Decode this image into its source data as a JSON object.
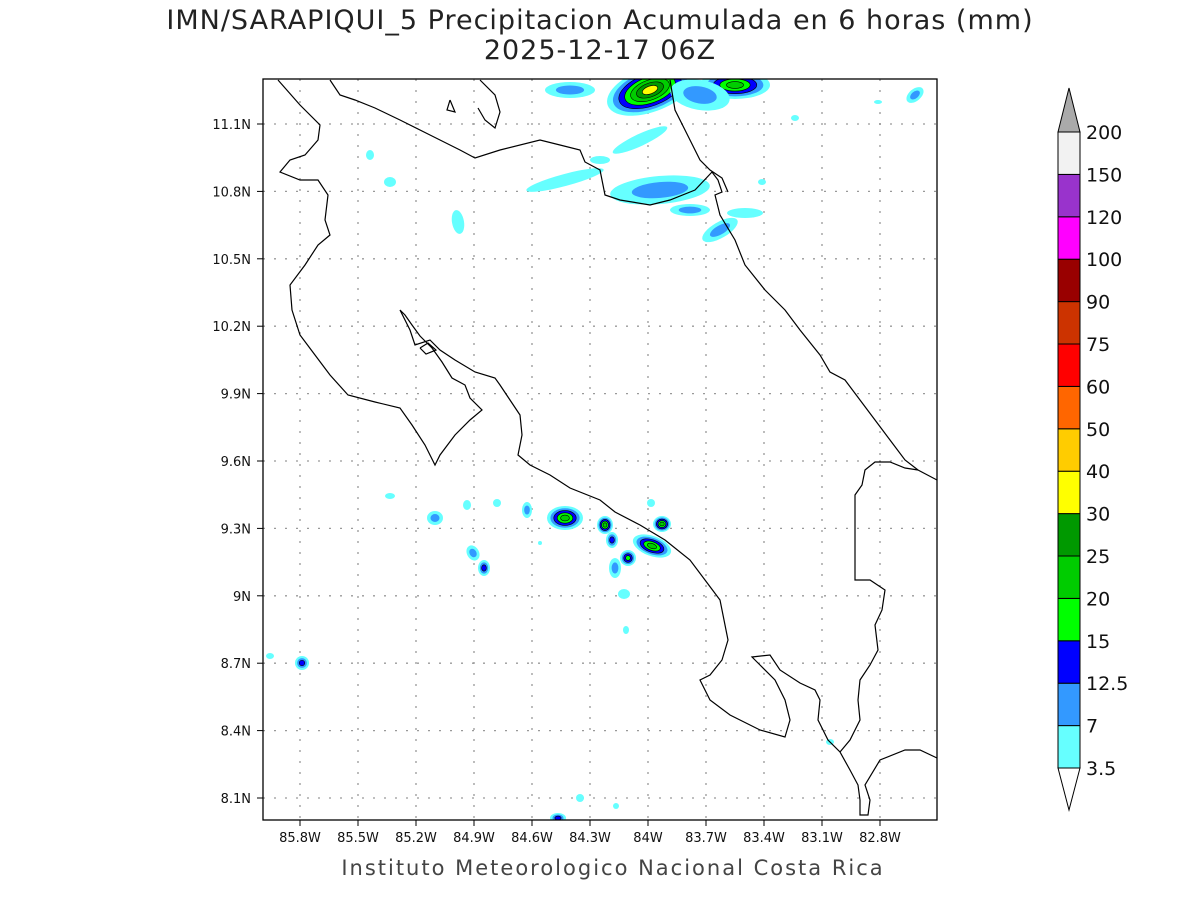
{
  "title": {
    "line1": "IMN/SARAPIQUI_5 Precipitacion Acumulada en 6 horas (mm)",
    "line2": "2025-12-17 06Z"
  },
  "footer": "Instituto Meteorologico Nacional Costa Rica",
  "chart_data": {
    "type": "heatmap",
    "variable": "Precipitacion Acumulada en 6 horas (mm)",
    "xaxis": {
      "ticks": [
        "85.8W",
        "85.5W",
        "85.2W",
        "84.9W",
        "84.6W",
        "84.3W",
        "84W",
        "83.7W",
        "83.4W",
        "83.1W",
        "82.8W"
      ],
      "values": [
        -85.8,
        -85.5,
        -85.2,
        -84.9,
        -84.6,
        -84.3,
        -84.0,
        -83.7,
        -83.4,
        -83.1,
        -82.8
      ]
    },
    "yaxis": {
      "ticks": [
        "11.1N",
        "10.8N",
        "10.5N",
        "10.2N",
        "9.9N",
        "9.6N",
        "9.3N",
        "9N",
        "8.7N",
        "8.4N",
        "8.1N"
      ],
      "values": [
        11.1,
        10.8,
        10.5,
        10.2,
        9.9,
        9.6,
        9.3,
        9.0,
        8.7,
        8.4,
        8.1
      ]
    },
    "grid": true,
    "colorbar": {
      "levels": [
        "3.5",
        "7",
        "12.5",
        "15",
        "20",
        "25",
        "30",
        "40",
        "50",
        "60",
        "75",
        "90",
        "100",
        "120",
        "150",
        "200"
      ],
      "colors": [
        "#66ffff",
        "#3399ff",
        "#0000ff",
        "#00ff00",
        "#00cc00",
        "#009900",
        "#ffff00",
        "#ffcc00",
        "#ff6600",
        "#ff0000",
        "#cc3300",
        "#990000",
        "#ff00ff",
        "#9933cc",
        "#f2f2f2",
        "#aaaaaa"
      ]
    }
  }
}
